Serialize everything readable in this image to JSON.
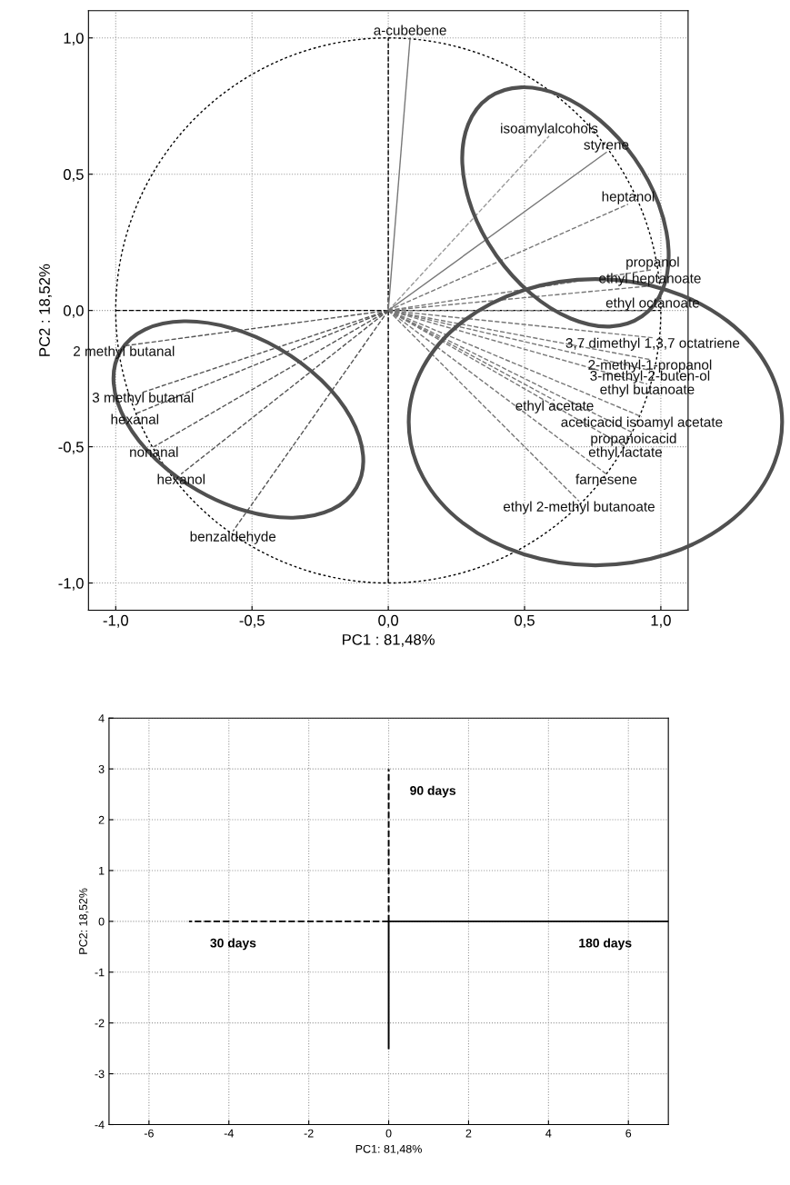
{
  "chart_data": [
    {
      "type": "line",
      "xlabel": "PC1 : 81,48%",
      "ylabel": "PC2 : 18,52%",
      "xlim": [
        -1.1,
        1.1
      ],
      "ylim": [
        -1.1,
        1.1
      ],
      "xticks": [
        {
          "value": -1.0,
          "label": "-1,0"
        },
        {
          "value": -0.5,
          "label": "-0,5"
        },
        {
          "value": 0.0,
          "label": "0,0"
        },
        {
          "value": 0.5,
          "label": "0,5"
        },
        {
          "value": 1.0,
          "label": "1,0"
        }
      ],
      "yticks": [
        {
          "value": -1.0,
          "label": "-1,0"
        },
        {
          "value": -0.5,
          "label": "-0,5"
        },
        {
          "value": 0.0,
          "label": "0,0"
        },
        {
          "value": 0.5,
          "label": "0,5"
        },
        {
          "value": 1.0,
          "label": "1,0"
        }
      ],
      "grid": true,
      "line_style": "dashed",
      "series": [
        {
          "color": "#000000",
          "x": [
            0,
            0
          ],
          "values": [
            -1.0,
            1.0
          ]
        },
        {
          "color": "#000000",
          "x": [
            -1.0,
            1.0
          ],
          "values": [
            0,
            0
          ]
        },
        {
          "name": "a-cubebene",
          "color": "#777777",
          "line_style": "solid",
          "x": [
            0,
            0.08
          ],
          "values": [
            0,
            1.0
          ]
        },
        {
          "name": "isoamylalcohols",
          "color": "#9a9a9a",
          "x": [
            0,
            0.59
          ],
          "values": [
            0,
            0.64
          ]
        },
        {
          "name": "styrene",
          "color": "#777777",
          "line_style": "solid",
          "x": [
            0,
            0.8
          ],
          "values": [
            0,
            0.58
          ]
        },
        {
          "name": "heptanol",
          "color": "#777777",
          "x": [
            0,
            0.88
          ],
          "values": [
            0,
            0.39
          ]
        },
        {
          "name": "propanol",
          "color": "#777777",
          "x": [
            0,
            0.97
          ],
          "values": [
            0,
            0.15
          ]
        },
        {
          "name": "ethyl heptanoate",
          "color": "#777777",
          "x": [
            0,
            0.96
          ],
          "values": [
            0,
            0.09
          ]
        },
        {
          "name": "ethyl octanoate",
          "color": "#777777",
          "x": [
            0,
            0.97
          ],
          "values": [
            0,
            0.0
          ]
        },
        {
          "name": "3,7 dimethyl 1,3,7 octatriene",
          "color": "#777777",
          "x": [
            0,
            0.97
          ],
          "values": [
            0,
            -0.1
          ]
        },
        {
          "name": "2-methyl-1-propanol",
          "color": "#777777",
          "x": [
            0,
            0.96
          ],
          "values": [
            0,
            -0.18
          ]
        },
        {
          "name": "3-methyl-2-buten-ol",
          "color": "#777777",
          "x": [
            0,
            0.96
          ],
          "values": [
            0,
            -0.22
          ]
        },
        {
          "name": "ethyl butanoate",
          "color": "#777777",
          "x": [
            0,
            0.95
          ],
          "values": [
            0,
            -0.27
          ]
        },
        {
          "name": "ethyl acetate",
          "color": "#777777",
          "x": [
            0,
            0.61
          ],
          "values": [
            0,
            -0.33
          ]
        },
        {
          "name": "aceticacid isoamyl acetate",
          "color": "#777777",
          "x": [
            0,
            0.93
          ],
          "values": [
            0,
            -0.39
          ]
        },
        {
          "name": "propanoicacid",
          "color": "#777777",
          "x": [
            0,
            0.9
          ],
          "values": [
            0,
            -0.45
          ]
        },
        {
          "name": "ethyl lactate",
          "color": "#777777",
          "x": [
            0,
            0.87
          ],
          "values": [
            0,
            -0.5
          ]
        },
        {
          "name": "farnesene",
          "color": "#777777",
          "x": [
            0,
            0.8
          ],
          "values": [
            0,
            -0.6
          ]
        },
        {
          "name": "ethyl 2-methyl butanoate",
          "color": "#777777",
          "x": [
            0,
            0.7
          ],
          "values": [
            0,
            -0.7
          ]
        },
        {
          "name": "2 methyl butanal",
          "color": "#555555",
          "x": [
            0,
            -0.97
          ],
          "values": [
            0,
            -0.13
          ]
        },
        {
          "name": "3 methyl butanal",
          "color": "#555555",
          "x": [
            0,
            -0.9
          ],
          "values": [
            0,
            -0.3
          ]
        },
        {
          "name": "hexanal",
          "color": "#555555",
          "x": [
            0,
            -0.93
          ],
          "values": [
            0,
            -0.38
          ]
        },
        {
          "name": "nonanal",
          "color": "#555555",
          "x": [
            0,
            -0.86
          ],
          "values": [
            0,
            -0.5
          ]
        },
        {
          "name": "hexanol",
          "color": "#555555",
          "x": [
            0,
            -0.76
          ],
          "values": [
            0,
            -0.6
          ]
        },
        {
          "name": "benzaldehyde",
          "color": "#555555",
          "x": [
            0,
            -0.57
          ],
          "values": [
            0,
            -0.81
          ]
        }
      ]
    },
    {
      "type": "line",
      "xlabel": "PC1: 81,48%",
      "ylabel": "PC2: 18,52%",
      "xlim": [
        -7,
        7
      ],
      "ylim": [
        -4,
        4
      ],
      "xticks": [
        -6,
        -4,
        -2,
        0,
        2,
        4,
        6
      ],
      "yticks": [
        -4,
        -3,
        -2,
        -1,
        0,
        1,
        2,
        3,
        4
      ],
      "grid": true,
      "series": [
        {
          "name": "30 days",
          "color": "#000000",
          "line_style": "dashed",
          "x": [
            0,
            -5
          ],
          "values": [
            0,
            0
          ]
        },
        {
          "name": "180 days",
          "color": "#000000",
          "line_style": "solid",
          "x": [
            0,
            7
          ],
          "values": [
            0,
            0
          ]
        },
        {
          "name": "90 days",
          "color": "#000000",
          "line_style": "dashed",
          "x": [
            0,
            0
          ],
          "values": [
            0,
            3
          ]
        },
        {
          "color": "#000000",
          "line_style": "solid",
          "x": [
            0,
            0
          ],
          "values": [
            0,
            -2.5
          ]
        }
      ]
    }
  ]
}
